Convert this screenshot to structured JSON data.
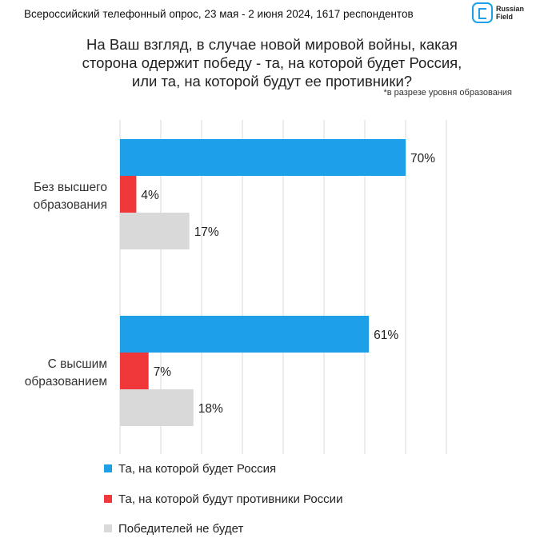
{
  "header": "Всероссийский телефонный опрос, 23 мая - 2 июня 2024, 1617 респондентов",
  "logo": {
    "line1": "Russian",
    "line2": "Field"
  },
  "title_lines": [
    "На Ваш взгляд, в случае новой мировой войны, какая",
    "сторона одержит победу - та, на которой будет Россия,",
    "или та, на которой будут ее противники?"
  ],
  "note": "*в разрезе уровня образования",
  "chart_data": {
    "type": "bar",
    "orientation": "horizontal",
    "categories": [
      [
        "Без высшего",
        "образования"
      ],
      [
        "С высшим",
        "образованием"
      ]
    ],
    "series": [
      {
        "name": "Та, на которой будет Россия",
        "values": [
          70,
          61
        ],
        "labels": [
          "70%",
          "61%"
        ],
        "color": "#1ea0e8"
      },
      {
        "name": "Та, на которой будут противники России",
        "values": [
          4,
          7
        ],
        "labels": [
          "4%",
          "7%"
        ],
        "color": "#f0383a"
      },
      {
        "name": "Победителей не будет",
        "values": [
          17,
          18
        ],
        "labels": [
          "17%",
          "18%"
        ],
        "color": "#d9d9d9"
      }
    ],
    "xlim": [
      0,
      80
    ],
    "grid": true,
    "legend_position": "bottom"
  }
}
